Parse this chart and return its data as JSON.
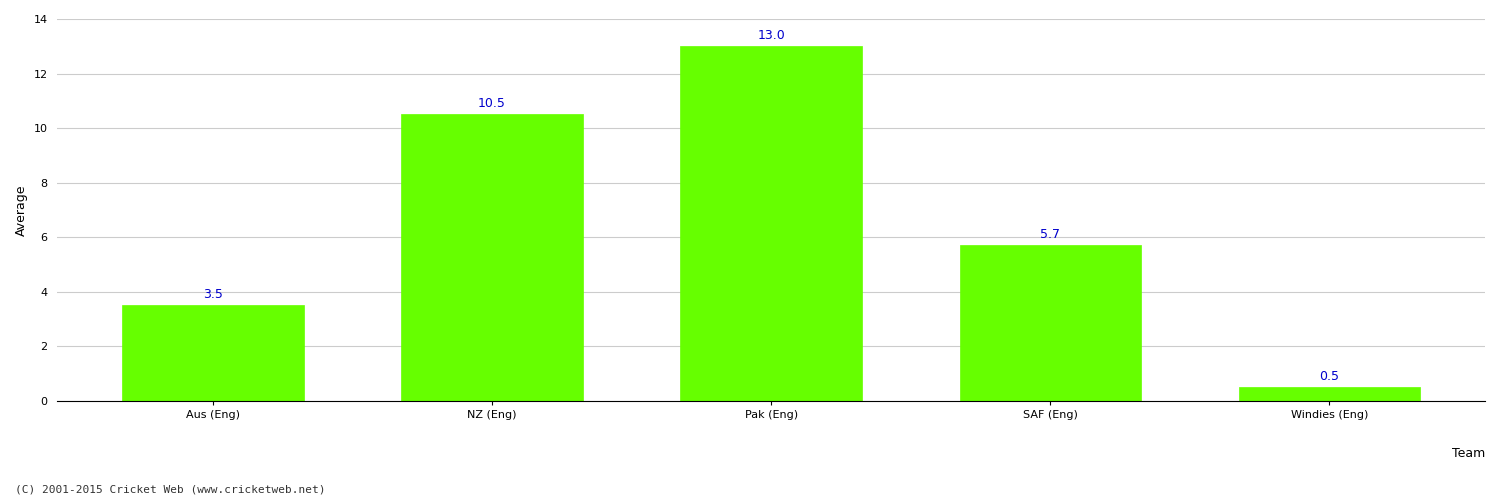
{
  "categories": [
    "Aus (Eng)",
    "NZ (Eng)",
    "Pak (Eng)",
    "SAF (Eng)",
    "Windies (Eng)"
  ],
  "values": [
    3.5,
    10.5,
    13.0,
    5.7,
    0.5
  ],
  "bar_color": "#66ff00",
  "bar_edge_color": "#66ff00",
  "label_color": "#0000cc",
  "label_fontsize": 9,
  "xlabel": "Team",
  "ylabel": "Average",
  "ylim": [
    0,
    14
  ],
  "yticks": [
    0,
    2,
    4,
    6,
    8,
    10,
    12,
    14
  ],
  "grid_color": "#cccccc",
  "bg_color": "#ffffff",
  "footer_text": "(C) 2001-2015 Cricket Web (www.cricketweb.net)",
  "footer_fontsize": 8,
  "footer_color": "#333333",
  "tick_fontsize": 8,
  "bar_width": 0.65
}
